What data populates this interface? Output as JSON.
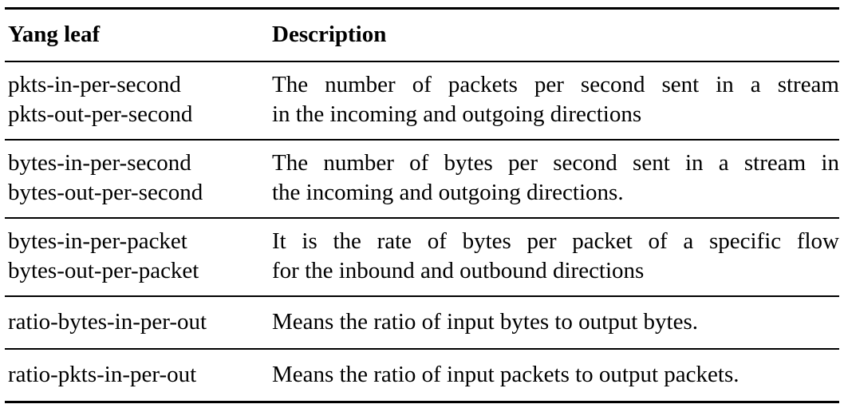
{
  "table": {
    "headers": [
      "Yang leaf",
      "Description"
    ],
    "rows": [
      {
        "leaf": [
          "pkts-in-per-second",
          "pkts-out-per-second"
        ],
        "description": [
          "The number of packets per second sent in a stream",
          "in the incoming and outgoing directions"
        ]
      },
      {
        "leaf": [
          "bytes-in-per-second",
          "bytes-out-per-second"
        ],
        "description": [
          "The number of bytes per second sent in a stream in",
          "the incoming and outgoing directions."
        ]
      },
      {
        "leaf": [
          "bytes-in-per-packet",
          "bytes-out-per-packet"
        ],
        "description": [
          "It is the rate of bytes per packet of a specific flow",
          "for the inbound and outbound directions"
        ]
      },
      {
        "leaf": [
          "ratio-bytes-in-per-out"
        ],
        "description": [
          "Means the ratio of input bytes to output bytes."
        ]
      },
      {
        "leaf": [
          "ratio-pkts-in-per-out"
        ],
        "description": [
          "Means the ratio of input packets to output packets."
        ]
      }
    ]
  }
}
